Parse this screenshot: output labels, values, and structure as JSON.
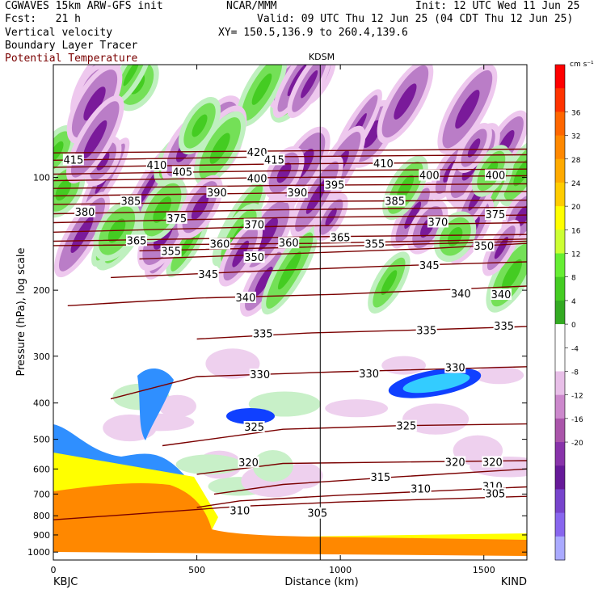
{
  "header": {
    "model": "CGWAVES 15km ARW-GFS init",
    "fcst": "Fcst:   21 h",
    "field1": "Vertical velocity",
    "field2": "Boundary Layer Tracer",
    "field3": "Potential Temperature",
    "org": "NCAR/MMM",
    "init": "Init: 12 UTC Wed 11 Jun 25",
    "valid": "Valid: 09 UTC Thu 12 Jun 25 (04 CDT Thu 12 Jun 25)",
    "xy": "XY= 150.5,136.9 to 260.4,139.6"
  },
  "colors": {
    "theta_contour": "#7a0000",
    "terrain": "#ff8800",
    "tracer_blue": "#1040ff",
    "up_green": "#44cc22",
    "down_purple": "#7a1a9a"
  },
  "chart_data": {
    "type": "heatmap",
    "title": "KDSM",
    "xlabel": "Distance (km)",
    "ylabel": "Pressure (hPa), log scale",
    "x_range": [
      0,
      1650
    ],
    "y_range": [
      1050,
      50
    ],
    "y_scale": "log",
    "x_ticks": [
      0,
      500,
      1000,
      1500
    ],
    "y_ticks": [
      100,
      200,
      300,
      400,
      500,
      600,
      700,
      800,
      900,
      1000
    ],
    "marker_x_km": 930,
    "left_station": "KBJC",
    "right_station": "KIND",
    "colorbar": {
      "units": "cm s⁻¹",
      "values": [
        36,
        32,
        28,
        24,
        20,
        16,
        12,
        8,
        4,
        0,
        -4,
        -8,
        -12,
        -16,
        -20
      ],
      "colors": [
        "#ff0000",
        "#ff3300",
        "#ff6600",
        "#ff8800",
        "#ffaa00",
        "#ffcc00",
        "#ffff00",
        "#ccff33",
        "#66ee33",
        "#44cc22",
        "#33aa22",
        "#ffffff",
        "#ffffff",
        "#e8bfe8",
        "#cc88cc",
        "#aa55aa",
        "#8833aa",
        "#661a99",
        "#7744cc",
        "#8866ee",
        "#aaaaff"
      ]
    },
    "theta_contours": [
      {
        "label": "305",
        "points": [
          [
            0,
            820
          ],
          [
            300,
            790
          ],
          [
            650,
            755
          ],
          [
            1000,
            735
          ],
          [
            1650,
            710
          ]
        ]
      },
      {
        "label": "310",
        "points": [
          [
            500,
            760
          ],
          [
            650,
            730
          ],
          [
            1000,
            705
          ],
          [
            1650,
            670
          ]
        ]
      },
      {
        "label": "315",
        "points": [
          [
            560,
            700
          ],
          [
            800,
            660
          ],
          [
            1200,
            630
          ],
          [
            1650,
            600
          ]
        ]
      },
      {
        "label": "320",
        "points": [
          [
            500,
            620
          ],
          [
            800,
            580
          ],
          [
            1200,
            575
          ],
          [
            1650,
            570
          ]
        ]
      },
      {
        "label": "325",
        "points": [
          [
            380,
            520
          ],
          [
            800,
            470
          ],
          [
            1200,
            460
          ],
          [
            1650,
            455
          ]
        ]
      },
      {
        "label": "330",
        "points": [
          [
            200,
            390
          ],
          [
            500,
            340
          ],
          [
            1000,
            330
          ],
          [
            1650,
            320
          ]
        ]
      },
      {
        "label": "335",
        "points": [
          [
            500,
            270
          ],
          [
            900,
            260
          ],
          [
            1300,
            255
          ],
          [
            1650,
            250
          ]
        ]
      },
      {
        "label": "340",
        "points": [
          [
            50,
            220
          ],
          [
            500,
            210
          ],
          [
            1000,
            205
          ],
          [
            1650,
            195
          ]
        ]
      },
      {
        "label": "345",
        "points": [
          [
            200,
            185
          ],
          [
            700,
            178
          ],
          [
            1200,
            172
          ],
          [
            1650,
            168
          ]
        ]
      },
      {
        "label": "350",
        "points": [
          [
            300,
            165
          ],
          [
            800,
            160
          ],
          [
            1300,
            155
          ],
          [
            1650,
            150
          ]
        ]
      },
      {
        "label": "355",
        "points": [
          [
            300,
            157
          ],
          [
            800,
            154
          ],
          [
            1650,
            148
          ]
        ]
      },
      {
        "label": "360",
        "points": [
          [
            0,
            152
          ],
          [
            900,
            150
          ],
          [
            1650,
            146
          ]
        ]
      },
      {
        "label": "365",
        "points": [
          [
            0,
            148
          ],
          [
            900,
            144
          ],
          [
            1650,
            142
          ]
        ]
      },
      {
        "label": "370",
        "points": [
          [
            0,
            140
          ],
          [
            800,
            135
          ],
          [
            1650,
            132
          ]
        ]
      },
      {
        "label": "375",
        "points": [
          [
            0,
            132
          ],
          [
            800,
            128
          ],
          [
            1650,
            126
          ]
        ]
      },
      {
        "label": "380",
        "points": [
          [
            0,
            125
          ],
          [
            800,
            122
          ],
          [
            1650,
            120
          ]
        ]
      },
      {
        "label": "385",
        "points": [
          [
            0,
            118
          ],
          [
            800,
            116
          ],
          [
            1650,
            115
          ]
        ]
      },
      {
        "label": "390",
        "points": [
          [
            0,
            112
          ],
          [
            800,
            110
          ],
          [
            1650,
            109
          ]
        ]
      },
      {
        "label": "395",
        "points": [
          [
            0,
            107
          ],
          [
            800,
            105
          ],
          [
            1650,
            104
          ]
        ]
      },
      {
        "label": "400",
        "points": [
          [
            0,
            102
          ],
          [
            800,
            100
          ],
          [
            1650,
            99
          ]
        ]
      },
      {
        "label": "405",
        "points": [
          [
            0,
            98
          ],
          [
            800,
            96
          ],
          [
            1650,
            95
          ]
        ]
      },
      {
        "label": "410",
        "points": [
          [
            0,
            94
          ],
          [
            800,
            92
          ],
          [
            1650,
            91
          ]
        ]
      },
      {
        "label": "415",
        "points": [
          [
            0,
            90
          ],
          [
            800,
            88
          ],
          [
            1650,
            87
          ]
        ]
      },
      {
        "label": "420",
        "points": [
          [
            0,
            86
          ],
          [
            800,
            85
          ],
          [
            1650,
            84
          ]
        ]
      }
    ],
    "theta_labels": [
      {
        "text": "415",
        "x": 70,
        "p": 90
      },
      {
        "text": "410",
        "x": 360,
        "p": 93
      },
      {
        "text": "420",
        "x": 710,
        "p": 86
      },
      {
        "text": "415",
        "x": 770,
        "p": 90
      },
      {
        "text": "410",
        "x": 1150,
        "p": 92
      },
      {
        "text": "405",
        "x": 450,
        "p": 97
      },
      {
        "text": "400",
        "x": 710,
        "p": 101
      },
      {
        "text": "400",
        "x": 1310,
        "p": 99
      },
      {
        "text": "400",
        "x": 1540,
        "p": 99
      },
      {
        "text": "385",
        "x": 270,
        "p": 116
      },
      {
        "text": "390",
        "x": 570,
        "p": 110
      },
      {
        "text": "390",
        "x": 850,
        "p": 110
      },
      {
        "text": "395",
        "x": 980,
        "p": 105
      },
      {
        "text": "385",
        "x": 1190,
        "p": 116
      },
      {
        "text": "380",
        "x": 110,
        "p": 124
      },
      {
        "text": "375",
        "x": 430,
        "p": 129
      },
      {
        "text": "370",
        "x": 700,
        "p": 134
      },
      {
        "text": "370",
        "x": 1340,
        "p": 132
      },
      {
        "text": "375",
        "x": 1540,
        "p": 126
      },
      {
        "text": "365",
        "x": 290,
        "p": 148
      },
      {
        "text": "360",
        "x": 580,
        "p": 151
      },
      {
        "text": "360",
        "x": 820,
        "p": 150
      },
      {
        "text": "365",
        "x": 1000,
        "p": 145
      },
      {
        "text": "355",
        "x": 1120,
        "p": 151
      },
      {
        "text": "355",
        "x": 410,
        "p": 158
      },
      {
        "text": "350",
        "x": 700,
        "p": 164
      },
      {
        "text": "350",
        "x": 1500,
        "p": 153
      },
      {
        "text": "345",
        "x": 540,
        "p": 182
      },
      {
        "text": "345",
        "x": 1310,
        "p": 172
      },
      {
        "text": "340",
        "x": 670,
        "p": 210
      },
      {
        "text": "340",
        "x": 1420,
        "p": 205
      },
      {
        "text": "340",
        "x": 1560,
        "p": 206
      },
      {
        "text": "335",
        "x": 730,
        "p": 262
      },
      {
        "text": "335",
        "x": 1300,
        "p": 257
      },
      {
        "text": "335",
        "x": 1570,
        "p": 250
      },
      {
        "text": "330",
        "x": 720,
        "p": 337
      },
      {
        "text": "330",
        "x": 1100,
        "p": 335
      },
      {
        "text": "330",
        "x": 1400,
        "p": 323
      },
      {
        "text": "325",
        "x": 700,
        "p": 465
      },
      {
        "text": "325",
        "x": 1230,
        "p": 462
      },
      {
        "text": "320",
        "x": 680,
        "p": 578
      },
      {
        "text": "320",
        "x": 1400,
        "p": 577
      },
      {
        "text": "320",
        "x": 1530,
        "p": 577
      },
      {
        "text": "315",
        "x": 1140,
        "p": 632
      },
      {
        "text": "310",
        "x": 1280,
        "p": 680
      },
      {
        "text": "310",
        "x": 1530,
        "p": 670
      },
      {
        "text": "310",
        "x": 650,
        "p": 778
      },
      {
        "text": "305",
        "x": 920,
        "p": 790
      },
      {
        "text": "305",
        "x": 1540,
        "p": 700
      }
    ]
  }
}
